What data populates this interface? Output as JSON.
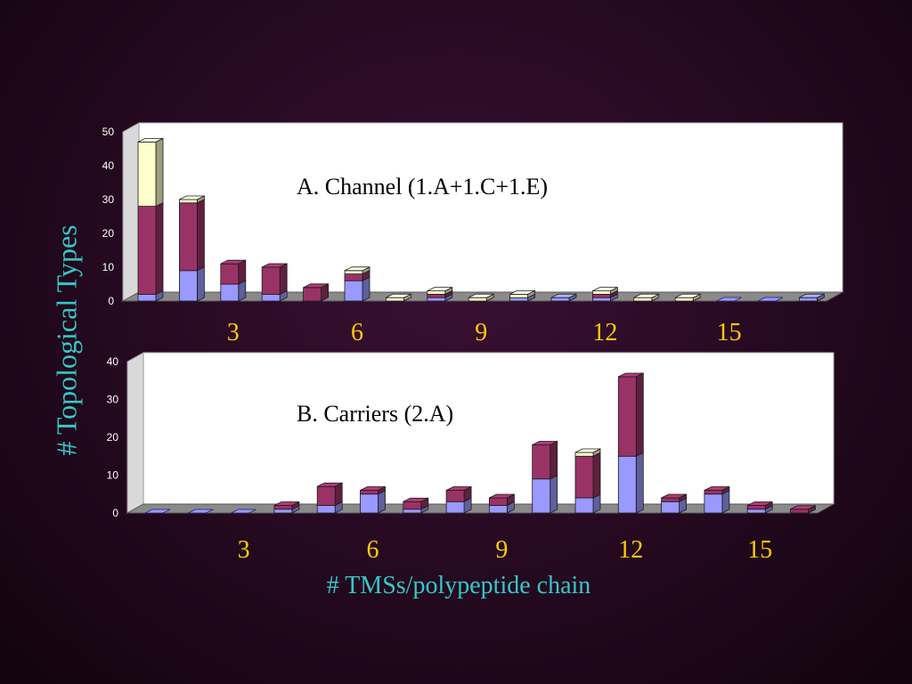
{
  "ylabel": "# Topological Types",
  "xlabel": "# TMSs/polypeptide chain",
  "colors": {
    "blue": "#9999ff",
    "maroon": "#993366",
    "cream": "#ffffcc",
    "tick": "#ffcc00",
    "label": "#35c7c7"
  },
  "chart_data": [
    {
      "type": "bar",
      "stacked": true,
      "title": "A. Channel (1.A+1.C+1.E)",
      "categories": [
        "1",
        "2",
        "3",
        "4",
        "5",
        "6",
        "7",
        "8",
        "9",
        "10",
        "11",
        "12",
        "13",
        "14",
        "15",
        "16",
        "17"
      ],
      "xticks": [
        "3",
        "6",
        "9",
        "12",
        "15"
      ],
      "ylim": [
        0,
        50
      ],
      "yticks": [
        "0",
        "10",
        "20",
        "30",
        "40",
        "50"
      ],
      "grid": false,
      "series": [
        {
          "color": "blue",
          "values": [
            2,
            9,
            5,
            2,
            0,
            6,
            0,
            1,
            0,
            1,
            1,
            1,
            0,
            0,
            0,
            0,
            1
          ]
        },
        {
          "color": "maroon",
          "values": [
            26,
            20,
            6,
            8,
            4,
            2,
            0,
            1,
            0,
            0,
            0,
            1,
            0,
            0,
            0,
            0,
            0
          ]
        },
        {
          "color": "cream",
          "values": [
            19,
            1,
            0,
            0,
            0,
            1,
            1,
            1,
            1,
            1,
            0,
            1,
            1,
            1,
            0,
            0,
            0
          ]
        }
      ]
    },
    {
      "type": "bar",
      "stacked": true,
      "title": "B. Carriers (2.A)",
      "categories": [
        "1",
        "2",
        "3",
        "4",
        "5",
        "6",
        "7",
        "8",
        "9",
        "10",
        "11",
        "12",
        "13",
        "14",
        "15",
        "16"
      ],
      "xticks": [
        "3",
        "6",
        "9",
        "12",
        "15"
      ],
      "ylim": [
        0,
        40
      ],
      "yticks": [
        "0",
        "10",
        "20",
        "30",
        "40"
      ],
      "grid": false,
      "series": [
        {
          "color": "blue",
          "values": [
            0,
            0,
            0,
            1,
            2,
            5,
            1,
            3,
            2,
            9,
            4,
            15,
            3,
            5,
            1,
            0
          ]
        },
        {
          "color": "maroon",
          "values": [
            0,
            0,
            0,
            1,
            5,
            1,
            2,
            3,
            2,
            9,
            11,
            21,
            1,
            1,
            1,
            1
          ]
        },
        {
          "color": "cream",
          "values": [
            0,
            0,
            0,
            0,
            0,
            0,
            0,
            0,
            0,
            0,
            1,
            0,
            0,
            0,
            0,
            0
          ]
        }
      ]
    }
  ]
}
